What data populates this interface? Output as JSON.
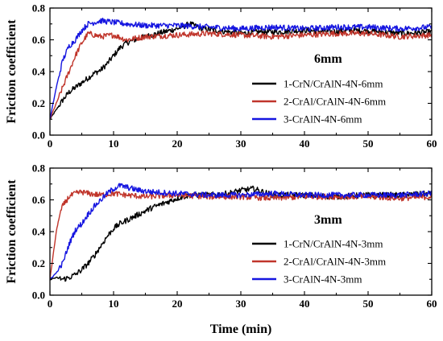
{
  "chart_data": [
    {
      "type": "line",
      "annotation": "6mm",
      "xlim": [
        0,
        60
      ],
      "ylim": [
        0.0,
        0.8
      ],
      "xticks": [
        0,
        10,
        20,
        30,
        40,
        50,
        60
      ],
      "yticks": [
        "0.0",
        "0.2",
        "0.4",
        "0.6",
        "0.8"
      ],
      "ylabel": "Friction coefficient",
      "xlabel": "",
      "legend_position": "center-right",
      "series": [
        {
          "name": "1-CrN/CrAlN-4N-6mm",
          "color": "#000000",
          "x": [
            0,
            1,
            2,
            3,
            4,
            5,
            6,
            7,
            8,
            9,
            10,
            11,
            12,
            14,
            16,
            18,
            20,
            22,
            24,
            26,
            28,
            30,
            33,
            36,
            40,
            44,
            48,
            52,
            56,
            60
          ],
          "y": [
            0.1,
            0.16,
            0.22,
            0.27,
            0.3,
            0.33,
            0.36,
            0.39,
            0.41,
            0.45,
            0.5,
            0.55,
            0.58,
            0.61,
            0.63,
            0.65,
            0.67,
            0.7,
            0.67,
            0.66,
            0.65,
            0.64,
            0.65,
            0.65,
            0.66,
            0.65,
            0.66,
            0.65,
            0.64,
            0.65
          ]
        },
        {
          "name": "2-CrAl/CrAlN-4N-6mm",
          "color": "#c0352b",
          "x": [
            0,
            1,
            2,
            3,
            4,
            5,
            6,
            8,
            10,
            12,
            15,
            20,
            25,
            30,
            35,
            40,
            45,
            50,
            55,
            60
          ],
          "y": [
            0.1,
            0.2,
            0.3,
            0.4,
            0.5,
            0.58,
            0.64,
            0.62,
            0.63,
            0.6,
            0.62,
            0.63,
            0.64,
            0.63,
            0.62,
            0.63,
            0.64,
            0.64,
            0.62,
            0.63
          ]
        },
        {
          "name": "3-CrAlN-4N-6mm",
          "color": "#1515e0",
          "x": [
            0,
            1,
            2,
            3,
            4,
            5,
            6,
            8,
            10,
            12,
            15,
            20,
            25,
            30,
            35,
            40,
            45,
            50,
            55,
            60
          ],
          "y": [
            0.1,
            0.3,
            0.47,
            0.56,
            0.6,
            0.66,
            0.7,
            0.72,
            0.71,
            0.7,
            0.69,
            0.69,
            0.68,
            0.67,
            0.68,
            0.67,
            0.68,
            0.68,
            0.67,
            0.68
          ]
        }
      ]
    },
    {
      "type": "line",
      "annotation": "3mm",
      "xlim": [
        0,
        60
      ],
      "ylim": [
        0.0,
        0.8
      ],
      "xticks": [
        0,
        10,
        20,
        30,
        40,
        50,
        60
      ],
      "yticks": [
        "0.0",
        "0.2",
        "0.4",
        "0.6",
        "0.8"
      ],
      "ylabel": "Friction coefficient",
      "xlabel": "Time (min)",
      "legend_position": "center-right",
      "series": [
        {
          "name": "1-CrN/CrAlN-4N-3mm",
          "color": "#000000",
          "x": [
            0,
            1,
            2,
            3,
            4,
            5,
            6,
            7,
            8,
            9,
            10,
            11,
            12,
            14,
            16,
            18,
            20,
            22,
            25,
            28,
            30,
            32,
            35,
            40,
            45,
            50,
            55,
            60
          ],
          "y": [
            0.1,
            0.11,
            0.1,
            0.11,
            0.13,
            0.16,
            0.2,
            0.25,
            0.31,
            0.37,
            0.42,
            0.45,
            0.47,
            0.51,
            0.55,
            0.58,
            0.61,
            0.63,
            0.63,
            0.64,
            0.66,
            0.67,
            0.63,
            0.63,
            0.62,
            0.63,
            0.63,
            0.64
          ]
        },
        {
          "name": "2-CrAl/CrAlN-4N-3mm",
          "color": "#c0352b",
          "x": [
            0,
            0.5,
            1,
            1.5,
            2,
            3,
            4,
            5,
            6,
            8,
            10,
            12,
            15,
            20,
            25,
            30,
            35,
            40,
            45,
            50,
            55,
            60
          ],
          "y": [
            0.1,
            0.25,
            0.4,
            0.5,
            0.56,
            0.62,
            0.64,
            0.65,
            0.64,
            0.63,
            0.64,
            0.63,
            0.62,
            0.63,
            0.62,
            0.62,
            0.61,
            0.62,
            0.62,
            0.62,
            0.61,
            0.62
          ]
        },
        {
          "name": "3-CrAlN-4N-3mm",
          "color": "#1515e0",
          "x": [
            0,
            1,
            2,
            3,
            4,
            5,
            6,
            7,
            8,
            9,
            10,
            11,
            12,
            14,
            16,
            20,
            25,
            30,
            35,
            40,
            45,
            50,
            55,
            60
          ],
          "y": [
            0.1,
            0.14,
            0.2,
            0.32,
            0.41,
            0.45,
            0.51,
            0.56,
            0.6,
            0.64,
            0.67,
            0.69,
            0.68,
            0.66,
            0.65,
            0.64,
            0.63,
            0.63,
            0.64,
            0.63,
            0.63,
            0.63,
            0.63,
            0.64
          ]
        }
      ]
    }
  ]
}
